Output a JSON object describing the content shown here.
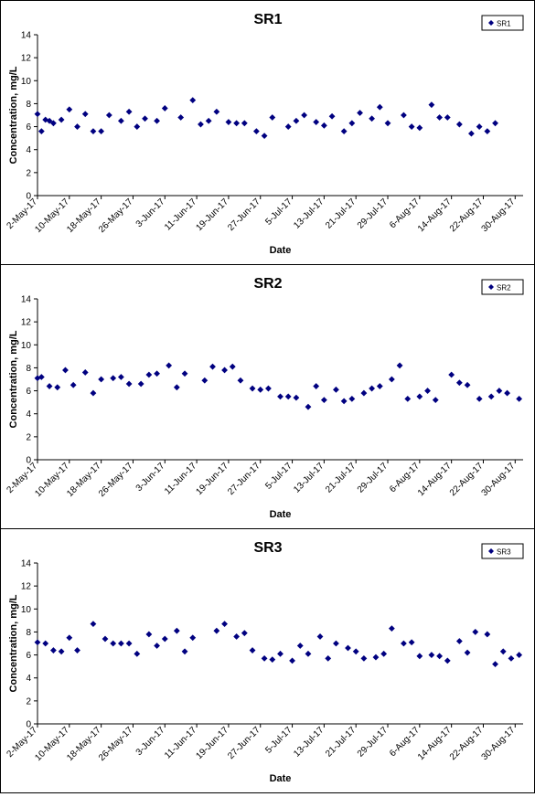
{
  "chart_data": [
    {
      "type": "scatter",
      "title": "SR1",
      "xlabel": "Date",
      "ylabel": "Concentration, mg/L",
      "ylim": [
        0,
        14
      ],
      "y_ticks": [
        0,
        2,
        4,
        6,
        8,
        10,
        12,
        14
      ],
      "x_tick_labels": [
        "2-May-17",
        "10-May-17",
        "18-May-17",
        "26-May-17",
        "3-Jun-17",
        "11-Jun-17",
        "19-Jun-17",
        "27-Jun-17",
        "5-Jul-17",
        "13-Jul-17",
        "21-Jul-17",
        "29-Jul-17",
        "6-Aug-17",
        "14-Aug-17",
        "22-Aug-17",
        "30-Aug-17"
      ],
      "xlim": [
        "2017-05-02",
        "2017-09-01"
      ],
      "grid": false,
      "legend_position": "top-right",
      "marker_color": "#000080",
      "series": [
        {
          "name": "SR1",
          "points": [
            [
              "2017-05-02",
              7.1
            ],
            [
              "2017-05-03",
              5.6
            ],
            [
              "2017-05-04",
              6.6
            ],
            [
              "2017-05-05",
              6.5
            ],
            [
              "2017-05-06",
              6.3
            ],
            [
              "2017-05-08",
              6.6
            ],
            [
              "2017-05-10",
              7.5
            ],
            [
              "2017-05-12",
              6.0
            ],
            [
              "2017-05-14",
              7.1
            ],
            [
              "2017-05-16",
              5.6
            ],
            [
              "2017-05-18",
              5.6
            ],
            [
              "2017-05-20",
              7.0
            ],
            [
              "2017-05-23",
              6.5
            ],
            [
              "2017-05-25",
              7.3
            ],
            [
              "2017-05-27",
              6.0
            ],
            [
              "2017-05-29",
              6.7
            ],
            [
              "2017-06-01",
              6.5
            ],
            [
              "2017-06-03",
              7.6
            ],
            [
              "2017-06-07",
              6.8
            ],
            [
              "2017-06-10",
              8.3
            ],
            [
              "2017-06-12",
              6.2
            ],
            [
              "2017-06-14",
              6.5
            ],
            [
              "2017-06-16",
              7.3
            ],
            [
              "2017-06-19",
              6.4
            ],
            [
              "2017-06-21",
              6.3
            ],
            [
              "2017-06-23",
              6.3
            ],
            [
              "2017-06-26",
              5.6
            ],
            [
              "2017-06-28",
              5.2
            ],
            [
              "2017-06-30",
              6.8
            ],
            [
              "2017-07-04",
              6.0
            ],
            [
              "2017-07-06",
              6.5
            ],
            [
              "2017-07-08",
              7.0
            ],
            [
              "2017-07-11",
              6.4
            ],
            [
              "2017-07-13",
              6.1
            ],
            [
              "2017-07-15",
              6.9
            ],
            [
              "2017-07-18",
              5.6
            ],
            [
              "2017-07-20",
              6.3
            ],
            [
              "2017-07-22",
              7.2
            ],
            [
              "2017-07-25",
              6.7
            ],
            [
              "2017-07-27",
              7.7
            ],
            [
              "2017-07-29",
              6.3
            ],
            [
              "2017-08-02",
              7.0
            ],
            [
              "2017-08-04",
              6.0
            ],
            [
              "2017-08-06",
              5.9
            ],
            [
              "2017-08-09",
              7.9
            ],
            [
              "2017-08-11",
              6.8
            ],
            [
              "2017-08-13",
              6.8
            ],
            [
              "2017-08-16",
              6.2
            ],
            [
              "2017-08-19",
              5.4
            ],
            [
              "2017-08-21",
              6.0
            ],
            [
              "2017-08-23",
              5.6
            ],
            [
              "2017-08-25",
              6.3
            ]
          ]
        }
      ]
    },
    {
      "type": "scatter",
      "title": "SR2",
      "xlabel": "Date",
      "ylabel": "Concentration, mg/L",
      "ylim": [
        0,
        14
      ],
      "y_ticks": [
        0,
        2,
        4,
        6,
        8,
        10,
        12,
        14
      ],
      "x_tick_labels": [
        "2-May-17",
        "10-May-17",
        "18-May-17",
        "26-May-17",
        "3-Jun-17",
        "11-Jun-17",
        "19-Jun-17",
        "27-Jun-17",
        "5-Jul-17",
        "13-Jul-17",
        "21-Jul-17",
        "29-Jul-17",
        "6-Aug-17",
        "14-Aug-17",
        "22-Aug-17",
        "30-Aug-17"
      ],
      "xlim": [
        "2017-05-02",
        "2017-09-01"
      ],
      "grid": false,
      "legend_position": "top-right",
      "marker_color": "#000080",
      "series": [
        {
          "name": "SR2",
          "points": [
            [
              "2017-05-02",
              7.1
            ],
            [
              "2017-05-03",
              7.2
            ],
            [
              "2017-05-05",
              6.4
            ],
            [
              "2017-05-07",
              6.3
            ],
            [
              "2017-05-09",
              7.8
            ],
            [
              "2017-05-11",
              6.5
            ],
            [
              "2017-05-14",
              7.6
            ],
            [
              "2017-05-16",
              5.8
            ],
            [
              "2017-05-18",
              7.0
            ],
            [
              "2017-05-21",
              7.1
            ],
            [
              "2017-05-23",
              7.2
            ],
            [
              "2017-05-25",
              6.6
            ],
            [
              "2017-05-28",
              6.6
            ],
            [
              "2017-05-30",
              7.4
            ],
            [
              "2017-06-01",
              7.5
            ],
            [
              "2017-06-04",
              8.2
            ],
            [
              "2017-06-06",
              6.3
            ],
            [
              "2017-06-08",
              7.5
            ],
            [
              "2017-06-13",
              6.9
            ],
            [
              "2017-06-15",
              8.1
            ],
            [
              "2017-06-18",
              7.8
            ],
            [
              "2017-06-20",
              8.1
            ],
            [
              "2017-06-22",
              6.9
            ],
            [
              "2017-06-25",
              6.2
            ],
            [
              "2017-06-27",
              6.1
            ],
            [
              "2017-06-29",
              6.2
            ],
            [
              "2017-07-02",
              5.5
            ],
            [
              "2017-07-04",
              5.5
            ],
            [
              "2017-07-06",
              5.4
            ],
            [
              "2017-07-09",
              4.6
            ],
            [
              "2017-07-11",
              6.4
            ],
            [
              "2017-07-13",
              5.2
            ],
            [
              "2017-07-16",
              6.1
            ],
            [
              "2017-07-18",
              5.1
            ],
            [
              "2017-07-20",
              5.3
            ],
            [
              "2017-07-23",
              5.8
            ],
            [
              "2017-07-25",
              6.2
            ],
            [
              "2017-07-27",
              6.4
            ],
            [
              "2017-07-30",
              7.0
            ],
            [
              "2017-08-01",
              8.2
            ],
            [
              "2017-08-03",
              5.3
            ],
            [
              "2017-08-06",
              5.5
            ],
            [
              "2017-08-08",
              6.0
            ],
            [
              "2017-08-10",
              5.2
            ],
            [
              "2017-08-14",
              7.4
            ],
            [
              "2017-08-16",
              6.7
            ],
            [
              "2017-08-18",
              6.5
            ],
            [
              "2017-08-21",
              5.3
            ],
            [
              "2017-08-24",
              5.5
            ],
            [
              "2017-08-26",
              6.0
            ],
            [
              "2017-08-28",
              5.8
            ],
            [
              "2017-08-31",
              5.3
            ]
          ]
        }
      ]
    },
    {
      "type": "scatter",
      "title": "SR3",
      "xlabel": "Date",
      "ylabel": "Concentration, mg/L",
      "ylim": [
        0,
        14
      ],
      "y_ticks": [
        0,
        2,
        4,
        6,
        8,
        10,
        12,
        14
      ],
      "x_tick_labels": [
        "2-May-17",
        "10-May-17",
        "18-May-17",
        "26-May-17",
        "3-Jun-17",
        "11-Jun-17",
        "19-Jun-17",
        "27-Jun-17",
        "5-Jul-17",
        "13-Jul-17",
        "21-Jul-17",
        "29-Jul-17",
        "6-Aug-17",
        "14-Aug-17",
        "22-Aug-17",
        "30-Aug-17"
      ],
      "xlim": [
        "2017-05-02",
        "2017-09-01"
      ],
      "grid": false,
      "legend_position": "top-right",
      "marker_color": "#000080",
      "series": [
        {
          "name": "SR3",
          "points": [
            [
              "2017-05-02",
              7.1
            ],
            [
              "2017-05-04",
              7.0
            ],
            [
              "2017-05-06",
              6.4
            ],
            [
              "2017-05-08",
              6.3
            ],
            [
              "2017-05-10",
              7.5
            ],
            [
              "2017-05-12",
              6.4
            ],
            [
              "2017-05-16",
              8.7
            ],
            [
              "2017-05-19",
              7.4
            ],
            [
              "2017-05-21",
              7.0
            ],
            [
              "2017-05-23",
              7.0
            ],
            [
              "2017-05-25",
              7.0
            ],
            [
              "2017-05-27",
              6.1
            ],
            [
              "2017-05-30",
              7.8
            ],
            [
              "2017-06-01",
              6.8
            ],
            [
              "2017-06-03",
              7.4
            ],
            [
              "2017-06-06",
              8.1
            ],
            [
              "2017-06-08",
              6.3
            ],
            [
              "2017-06-10",
              7.5
            ],
            [
              "2017-06-16",
              8.1
            ],
            [
              "2017-06-18",
              8.7
            ],
            [
              "2017-06-21",
              7.6
            ],
            [
              "2017-06-23",
              7.9
            ],
            [
              "2017-06-25",
              6.4
            ],
            [
              "2017-06-28",
              5.7
            ],
            [
              "2017-06-30",
              5.6
            ],
            [
              "2017-07-02",
              6.1
            ],
            [
              "2017-07-05",
              5.5
            ],
            [
              "2017-07-07",
              6.8
            ],
            [
              "2017-07-09",
              6.1
            ],
            [
              "2017-07-12",
              7.6
            ],
            [
              "2017-07-14",
              5.7
            ],
            [
              "2017-07-16",
              7.0
            ],
            [
              "2017-07-19",
              6.6
            ],
            [
              "2017-07-21",
              6.3
            ],
            [
              "2017-07-23",
              5.7
            ],
            [
              "2017-07-26",
              5.8
            ],
            [
              "2017-07-28",
              6.1
            ],
            [
              "2017-07-30",
              8.3
            ],
            [
              "2017-08-02",
              7.0
            ],
            [
              "2017-08-04",
              7.1
            ],
            [
              "2017-08-06",
              5.9
            ],
            [
              "2017-08-09",
              6.0
            ],
            [
              "2017-08-11",
              5.9
            ],
            [
              "2017-08-13",
              5.5
            ],
            [
              "2017-08-16",
              7.2
            ],
            [
              "2017-08-18",
              6.2
            ],
            [
              "2017-08-20",
              8.0
            ],
            [
              "2017-08-23",
              7.8
            ],
            [
              "2017-08-25",
              5.2
            ],
            [
              "2017-08-27",
              6.3
            ],
            [
              "2017-08-29",
              5.7
            ],
            [
              "2017-08-31",
              6.0
            ]
          ]
        }
      ]
    }
  ]
}
